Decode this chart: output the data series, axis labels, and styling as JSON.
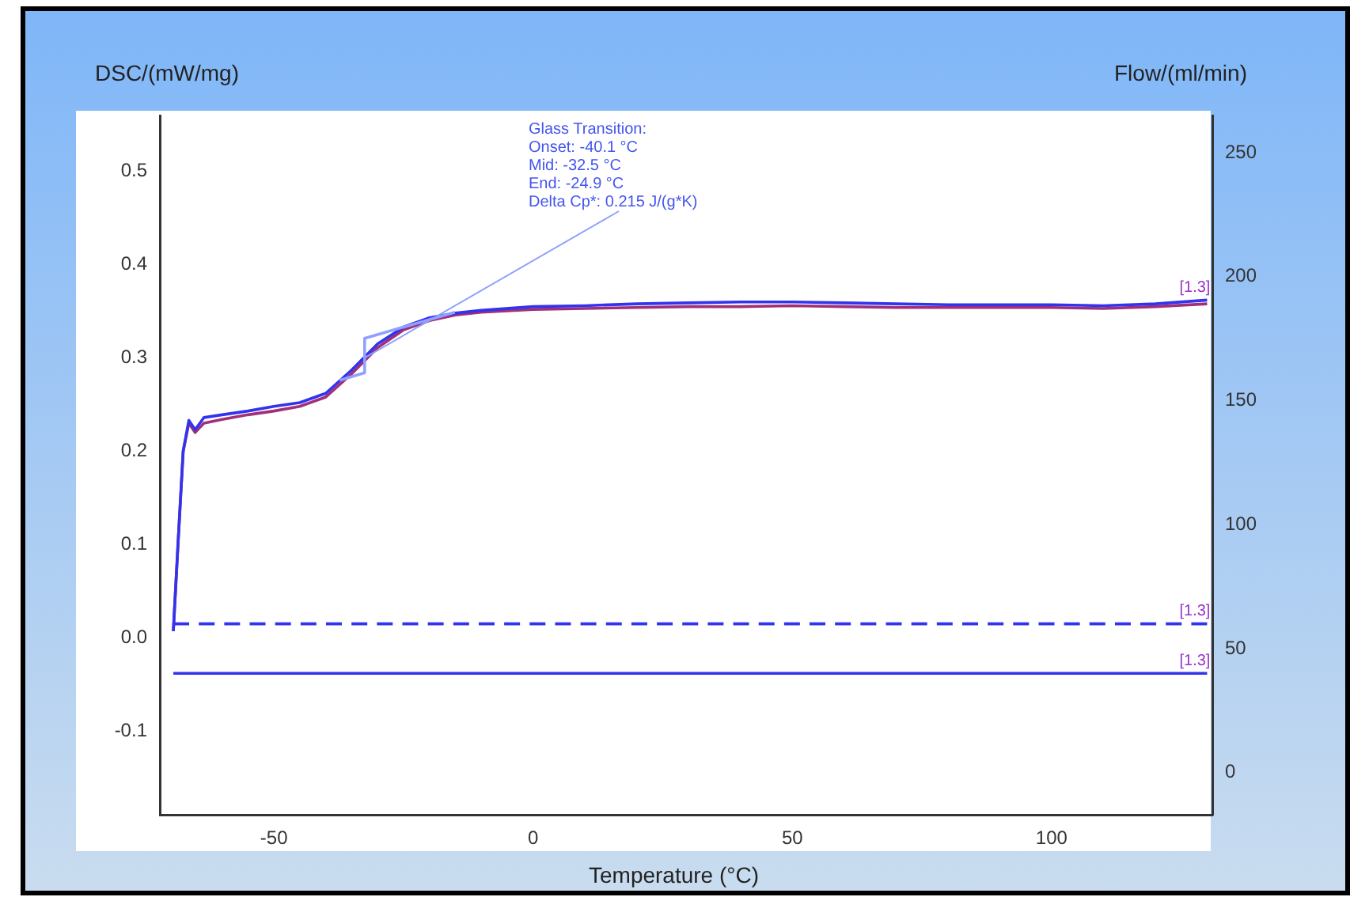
{
  "chart_data": {
    "type": "line",
    "xlabel": "Temperature (°C)",
    "ylabel": "DSC/(mW/mg)",
    "y2label": "Flow/(ml/min)",
    "xlim": [
      -72,
      131
    ],
    "xticks": [
      -50,
      0,
      50,
      100
    ],
    "ylim": [
      -0.19,
      0.56
    ],
    "yticks": [
      {
        "value": -0.1,
        "label": "-0.1"
      },
      {
        "value": 0,
        "label": "0.0"
      },
      0.1,
      0.2,
      0.3,
      0.4,
      0.5
    ],
    "y2lim": [
      -17,
      265
    ],
    "y2ticks": [
      0,
      50,
      100,
      150,
      200,
      250
    ],
    "grid": false,
    "legend": false,
    "marker": "none",
    "annotations": [
      "Glass Transition:",
      "Onset: -40.1 °C",
      "Mid: -32.5 °C",
      "End: -24.9 °C",
      {
        "text": "Delta Cp*: 0.215 J/(g*K)",
        "x": -32.5,
        "y": 0.3
      }
    ],
    "series": [
      {
        "color": "#a0307a",
        "x": [
          -69.4,
          -68.5,
          -67.5,
          -66.4,
          -65.2,
          -63.5,
          -60,
          -55,
          -50,
          -45,
          -40,
          -35,
          -30,
          -25,
          -20,
          -15,
          -10,
          0,
          10,
          20,
          30,
          40,
          50,
          60,
          70,
          80,
          90,
          100,
          110,
          120,
          130
        ],
        "values": [
          0.007,
          0.1,
          0.2,
          0.23,
          0.22,
          0.23,
          0.234,
          0.239,
          0.243,
          0.248,
          0.258,
          0.283,
          0.311,
          0.33,
          0.34,
          0.346,
          0.349,
          0.352,
          0.353,
          0.354,
          0.355,
          0.355,
          0.356,
          0.355,
          0.354,
          0.354,
          0.354,
          0.354,
          0.353,
          0.355,
          0.358
        ]
      },
      {
        "name": "[1.3]",
        "color": "#3333ee",
        "x": [
          -69.4,
          -68.5,
          -67.5,
          -66.4,
          -65.2,
          -63.5,
          -60,
          -55,
          -50,
          -45,
          -40,
          -35,
          -30,
          -25,
          -20,
          -15,
          -10,
          0,
          10,
          20,
          30,
          40,
          50,
          60,
          70,
          80,
          90,
          100,
          110,
          120,
          130
        ],
        "values": [
          0.007,
          0.1,
          0.2,
          0.233,
          0.223,
          0.236,
          0.239,
          0.243,
          0.248,
          0.252,
          0.262,
          0.287,
          0.315,
          0.333,
          0.343,
          0.348,
          0.351,
          0.355,
          0.356,
          0.358,
          0.359,
          0.36,
          0.36,
          0.359,
          0.358,
          0.357,
          0.357,
          0.357,
          0.356,
          0.358,
          0.362
        ]
      },
      {
        "color": "#8fa0ff",
        "x": [
          -37.3,
          -32.5,
          -32.5,
          -15.1
        ],
        "values": [
          0.276,
          0.284,
          0.321,
          0.349
        ]
      },
      {
        "name": "[1.3]",
        "color": "#3333ee",
        "axis": "y2",
        "line_style": "dashed",
        "x": [
          -69.4,
          130
        ],
        "values": [
          60,
          60
        ]
      },
      {
        "name": "[1.3]",
        "color": "#3333ee",
        "axis": "y2",
        "x": [
          -69.4,
          130
        ],
        "values": [
          40,
          40
        ]
      }
    ]
  }
}
